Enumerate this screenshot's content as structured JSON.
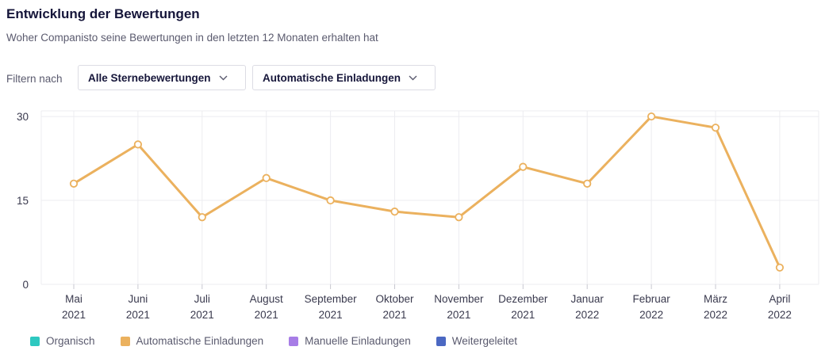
{
  "header": {
    "title": "Entwicklung der Bewertungen",
    "subtitle": "Woher Companisto seine Bewertungen in den letzten 12 Monaten erhalten hat"
  },
  "filters": {
    "label": "Filtern nach",
    "stars": "Alle Sternebewertungen",
    "source": "Automatische Einladungen"
  },
  "colors": {
    "line": "#ebb15e",
    "grid": "#ececf0",
    "organic": "#2ec8c0",
    "automatic": "#ebb15e",
    "manual": "#a77de6",
    "forwarded": "#4b68c2"
  },
  "legend": [
    {
      "label": "Organisch",
      "color": "#2ec8c0"
    },
    {
      "label": "Automatische Einladungen",
      "color": "#ebb15e"
    },
    {
      "label": "Manuelle Einladungen",
      "color": "#a77de6"
    },
    {
      "label": "Weitergeleitet",
      "color": "#4b68c2"
    }
  ],
  "chart_data": {
    "type": "line",
    "title": "Entwicklung der Bewertungen",
    "xlabel": "",
    "ylabel": "",
    "categories": [
      [
        "Mai",
        "2021"
      ],
      [
        "Juni",
        "2021"
      ],
      [
        "Juli",
        "2021"
      ],
      [
        "August",
        "2021"
      ],
      [
        "September",
        "2021"
      ],
      [
        "Oktober",
        "2021"
      ],
      [
        "November",
        "2021"
      ],
      [
        "Dezember",
        "2021"
      ],
      [
        "Januar",
        "2022"
      ],
      [
        "Februar",
        "2022"
      ],
      [
        "März",
        "2022"
      ],
      [
        "April",
        "2022"
      ]
    ],
    "series": [
      {
        "name": "Automatische Einladungen",
        "values": [
          18,
          25,
          12,
          19,
          15,
          13,
          12,
          21,
          18,
          30,
          28,
          3
        ]
      }
    ],
    "yticks": [
      0,
      15,
      30
    ],
    "ylim": [
      0,
      31
    ],
    "grid": true,
    "legend_position": "bottom"
  }
}
